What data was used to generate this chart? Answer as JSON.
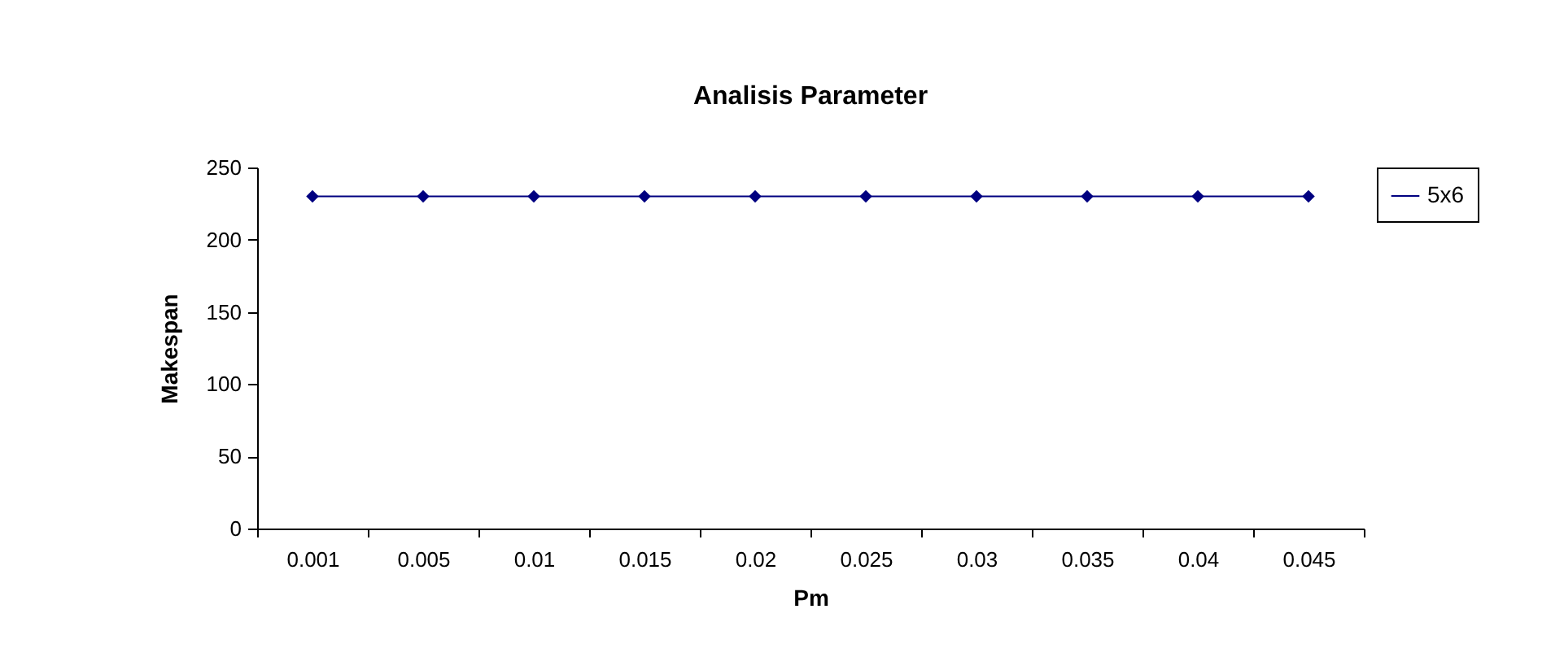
{
  "chart_data": {
    "type": "line",
    "title": "Analisis Parameter",
    "xlabel": "Pm",
    "ylabel": "Makespan",
    "categories": [
      "0.001",
      "0.005",
      "0.01",
      "0.015",
      "0.02",
      "0.025",
      "0.03",
      "0.035",
      "0.04",
      "0.045"
    ],
    "series": [
      {
        "name": "5x6",
        "color": "#000080",
        "values": [
          230,
          230,
          230,
          230,
          230,
          230,
          230,
          230,
          230,
          230
        ]
      }
    ],
    "ylim": [
      0,
      250
    ],
    "yticks": [
      0,
      50,
      100,
      150,
      200,
      250
    ],
    "grid": false,
    "legend": "right",
    "marker": "diamond",
    "line_style": "solid"
  }
}
